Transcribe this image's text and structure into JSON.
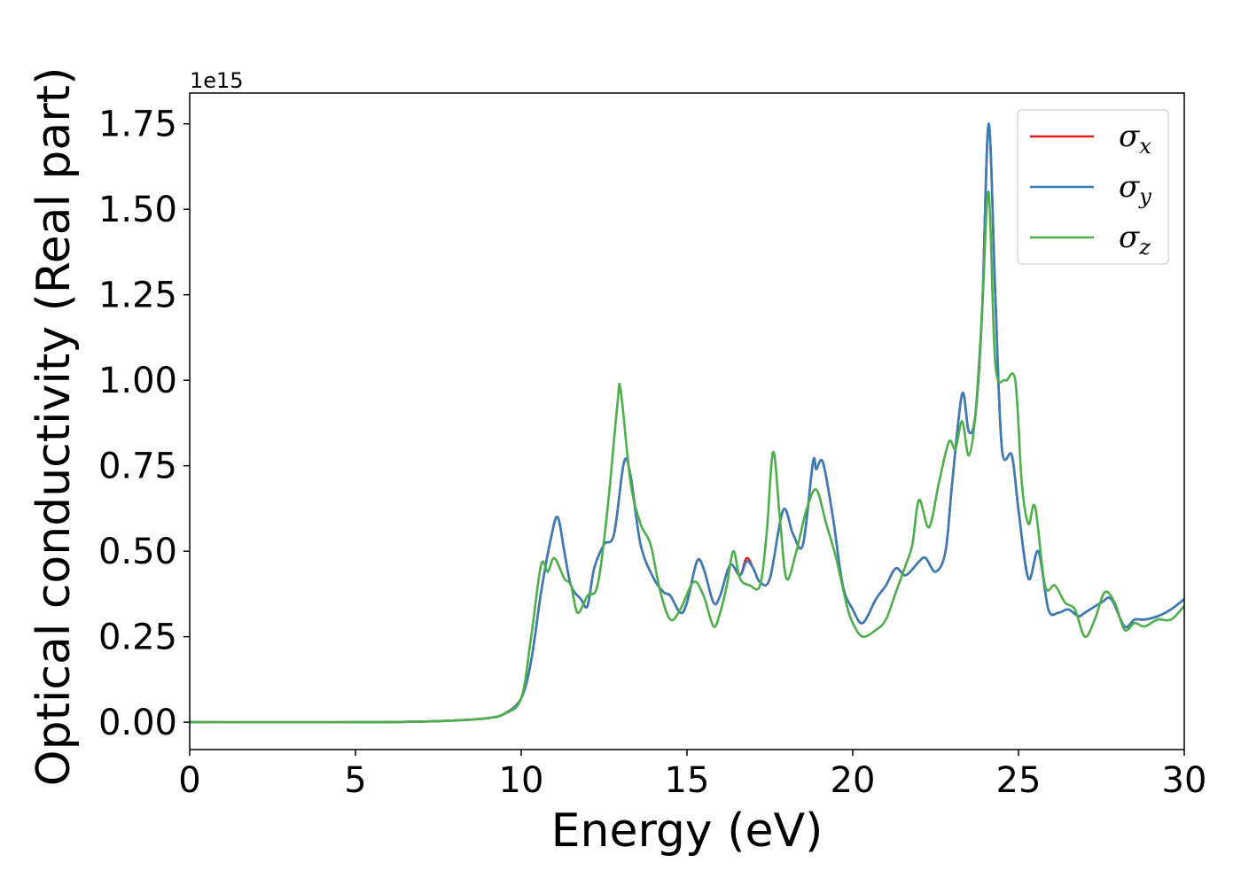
{
  "chart_data": {
    "type": "line",
    "xlabel": "Energy (eV)",
    "ylabel": "Optical conductivity (Real part)",
    "y_offset_label": "1e15",
    "xlim": [
      0,
      30
    ],
    "ylim": [
      -0.08,
      1.84
    ],
    "y_scale": 1000000000000000.0,
    "x_ticks": [
      0,
      5,
      10,
      15,
      20,
      25,
      30
    ],
    "x_tick_labels": [
      "0",
      "5",
      "10",
      "15",
      "20",
      "25",
      "30"
    ],
    "y_ticks": [
      0.0,
      0.25,
      0.5,
      0.75,
      1.0,
      1.25,
      1.5,
      1.75
    ],
    "y_tick_labels": [
      "0.00",
      "0.25",
      "0.50",
      "0.75",
      "1.00",
      "1.25",
      "1.50",
      "1.75"
    ],
    "grid": false,
    "legend_position": "top-right",
    "series": [
      {
        "name": "σx",
        "color": "#e41a1c",
        "points": [
          [
            0,
            0
          ],
          [
            5,
            0.0
          ],
          [
            7,
            0.002
          ],
          [
            8,
            0.005
          ],
          [
            9,
            0.012
          ],
          [
            9.5,
            0.025
          ],
          [
            10,
            0.07
          ],
          [
            10.3,
            0.18
          ],
          [
            10.6,
            0.38
          ],
          [
            10.9,
            0.54
          ],
          [
            11.1,
            0.6
          ],
          [
            11.3,
            0.5
          ],
          [
            11.5,
            0.4
          ],
          [
            11.8,
            0.36
          ],
          [
            12.0,
            0.34
          ],
          [
            12.2,
            0.45
          ],
          [
            12.5,
            0.52
          ],
          [
            12.8,
            0.55
          ],
          [
            13.1,
            0.76
          ],
          [
            13.3,
            0.72
          ],
          [
            13.6,
            0.52
          ],
          [
            14.0,
            0.42
          ],
          [
            14.3,
            0.38
          ],
          [
            14.5,
            0.37
          ],
          [
            14.8,
            0.32
          ],
          [
            15.0,
            0.35
          ],
          [
            15.3,
            0.47
          ],
          [
            15.5,
            0.45
          ],
          [
            15.8,
            0.35
          ],
          [
            16.0,
            0.37
          ],
          [
            16.3,
            0.46
          ],
          [
            16.6,
            0.43
          ],
          [
            16.8,
            0.48
          ],
          [
            17.0,
            0.45
          ],
          [
            17.2,
            0.41
          ],
          [
            17.5,
            0.42
          ],
          [
            17.9,
            0.62
          ],
          [
            18.2,
            0.55
          ],
          [
            18.5,
            0.52
          ],
          [
            18.8,
            0.76
          ],
          [
            18.9,
            0.74
          ],
          [
            19.1,
            0.76
          ],
          [
            19.4,
            0.6
          ],
          [
            19.7,
            0.4
          ],
          [
            20.0,
            0.33
          ],
          [
            20.3,
            0.29
          ],
          [
            20.7,
            0.36
          ],
          [
            21.0,
            0.4
          ],
          [
            21.3,
            0.45
          ],
          [
            21.6,
            0.43
          ],
          [
            22.0,
            0.47
          ],
          [
            22.2,
            0.48
          ],
          [
            22.5,
            0.44
          ],
          [
            22.8,
            0.5
          ],
          [
            23.0,
            0.7
          ],
          [
            23.3,
            0.96
          ],
          [
            23.5,
            0.85
          ],
          [
            23.7,
            0.9
          ],
          [
            23.9,
            1.2
          ],
          [
            24.1,
            1.75
          ],
          [
            24.3,
            1.25
          ],
          [
            24.5,
            0.8
          ],
          [
            24.8,
            0.78
          ],
          [
            25.0,
            0.62
          ],
          [
            25.3,
            0.42
          ],
          [
            25.6,
            0.5
          ],
          [
            25.9,
            0.33
          ],
          [
            26.2,
            0.32
          ],
          [
            26.5,
            0.33
          ],
          [
            26.8,
            0.31
          ],
          [
            27.0,
            0.32
          ],
          [
            27.5,
            0.35
          ],
          [
            27.8,
            0.36
          ],
          [
            28.2,
            0.28
          ],
          [
            28.5,
            0.3
          ],
          [
            28.8,
            0.3
          ],
          [
            29.2,
            0.31
          ],
          [
            29.6,
            0.33
          ],
          [
            30,
            0.36
          ]
        ]
      },
      {
        "name": "σy",
        "color": "#377eb8",
        "points": [
          [
            0,
            0
          ],
          [
            5,
            0.0
          ],
          [
            7,
            0.002
          ],
          [
            8,
            0.005
          ],
          [
            9,
            0.012
          ],
          [
            9.5,
            0.025
          ],
          [
            10,
            0.07
          ],
          [
            10.3,
            0.18
          ],
          [
            10.6,
            0.38
          ],
          [
            10.9,
            0.54
          ],
          [
            11.1,
            0.6
          ],
          [
            11.3,
            0.5
          ],
          [
            11.5,
            0.4
          ],
          [
            11.8,
            0.36
          ],
          [
            12.0,
            0.34
          ],
          [
            12.2,
            0.45
          ],
          [
            12.5,
            0.52
          ],
          [
            12.8,
            0.55
          ],
          [
            13.1,
            0.76
          ],
          [
            13.3,
            0.72
          ],
          [
            13.6,
            0.52
          ],
          [
            14.0,
            0.42
          ],
          [
            14.3,
            0.38
          ],
          [
            14.5,
            0.37
          ],
          [
            14.8,
            0.32
          ],
          [
            15.0,
            0.35
          ],
          [
            15.3,
            0.47
          ],
          [
            15.5,
            0.45
          ],
          [
            15.8,
            0.35
          ],
          [
            16.0,
            0.37
          ],
          [
            16.3,
            0.46
          ],
          [
            16.6,
            0.43
          ],
          [
            16.8,
            0.47
          ],
          [
            17.0,
            0.45
          ],
          [
            17.2,
            0.41
          ],
          [
            17.5,
            0.42
          ],
          [
            17.9,
            0.62
          ],
          [
            18.2,
            0.55
          ],
          [
            18.5,
            0.52
          ],
          [
            18.8,
            0.76
          ],
          [
            18.9,
            0.74
          ],
          [
            19.1,
            0.76
          ],
          [
            19.4,
            0.6
          ],
          [
            19.7,
            0.4
          ],
          [
            20.0,
            0.33
          ],
          [
            20.3,
            0.29
          ],
          [
            20.7,
            0.36
          ],
          [
            21.0,
            0.4
          ],
          [
            21.3,
            0.45
          ],
          [
            21.6,
            0.43
          ],
          [
            22.0,
            0.47
          ],
          [
            22.2,
            0.48
          ],
          [
            22.5,
            0.44
          ],
          [
            22.8,
            0.5
          ],
          [
            23.0,
            0.7
          ],
          [
            23.3,
            0.96
          ],
          [
            23.5,
            0.85
          ],
          [
            23.7,
            0.9
          ],
          [
            23.9,
            1.2
          ],
          [
            24.1,
            1.75
          ],
          [
            24.3,
            1.25
          ],
          [
            24.5,
            0.8
          ],
          [
            24.8,
            0.78
          ],
          [
            25.0,
            0.62
          ],
          [
            25.3,
            0.42
          ],
          [
            25.6,
            0.5
          ],
          [
            25.9,
            0.33
          ],
          [
            26.2,
            0.32
          ],
          [
            26.5,
            0.33
          ],
          [
            26.8,
            0.31
          ],
          [
            27.0,
            0.32
          ],
          [
            27.5,
            0.35
          ],
          [
            27.8,
            0.36
          ],
          [
            28.2,
            0.28
          ],
          [
            28.5,
            0.3
          ],
          [
            28.8,
            0.3
          ],
          [
            29.2,
            0.31
          ],
          [
            29.6,
            0.33
          ],
          [
            30,
            0.36
          ]
        ]
      },
      {
        "name": "σz",
        "color": "#4daf4a",
        "points": [
          [
            0,
            0
          ],
          [
            5,
            0.0
          ],
          [
            7,
            0.002
          ],
          [
            8,
            0.005
          ],
          [
            9,
            0.012
          ],
          [
            9.5,
            0.025
          ],
          [
            10,
            0.07
          ],
          [
            10.3,
            0.25
          ],
          [
            10.6,
            0.46
          ],
          [
            10.8,
            0.44
          ],
          [
            11.0,
            0.48
          ],
          [
            11.3,
            0.42
          ],
          [
            11.5,
            0.4
          ],
          [
            11.7,
            0.32
          ],
          [
            12.0,
            0.37
          ],
          [
            12.3,
            0.4
          ],
          [
            12.6,
            0.62
          ],
          [
            12.9,
            0.93
          ],
          [
            13.0,
            0.97
          ],
          [
            13.3,
            0.7
          ],
          [
            13.6,
            0.58
          ],
          [
            13.9,
            0.52
          ],
          [
            14.2,
            0.38
          ],
          [
            14.5,
            0.3
          ],
          [
            14.8,
            0.33
          ],
          [
            15.2,
            0.41
          ],
          [
            15.5,
            0.37
          ],
          [
            15.8,
            0.28
          ],
          [
            16.0,
            0.32
          ],
          [
            16.2,
            0.4
          ],
          [
            16.4,
            0.5
          ],
          [
            16.6,
            0.42
          ],
          [
            16.9,
            0.4
          ],
          [
            17.2,
            0.4
          ],
          [
            17.4,
            0.55
          ],
          [
            17.6,
            0.79
          ],
          [
            17.8,
            0.6
          ],
          [
            18.0,
            0.42
          ],
          [
            18.3,
            0.5
          ],
          [
            18.6,
            0.62
          ],
          [
            18.9,
            0.68
          ],
          [
            19.2,
            0.58
          ],
          [
            19.5,
            0.48
          ],
          [
            19.8,
            0.35
          ],
          [
            20.0,
            0.29
          ],
          [
            20.3,
            0.25
          ],
          [
            20.7,
            0.27
          ],
          [
            21.0,
            0.3
          ],
          [
            21.3,
            0.38
          ],
          [
            21.6,
            0.46
          ],
          [
            21.8,
            0.52
          ],
          [
            22.0,
            0.65
          ],
          [
            22.3,
            0.57
          ],
          [
            22.6,
            0.7
          ],
          [
            22.9,
            0.82
          ],
          [
            23.1,
            0.8
          ],
          [
            23.3,
            0.88
          ],
          [
            23.5,
            0.78
          ],
          [
            23.7,
            0.9
          ],
          [
            23.9,
            1.2
          ],
          [
            24.1,
            1.55
          ],
          [
            24.3,
            1.05
          ],
          [
            24.6,
            1.0
          ],
          [
            24.9,
            1.0
          ],
          [
            25.1,
            0.7
          ],
          [
            25.3,
            0.58
          ],
          [
            25.5,
            0.63
          ],
          [
            25.8,
            0.4
          ],
          [
            26.1,
            0.4
          ],
          [
            26.4,
            0.35
          ],
          [
            26.7,
            0.33
          ],
          [
            27.0,
            0.25
          ],
          [
            27.3,
            0.3
          ],
          [
            27.6,
            0.38
          ],
          [
            27.9,
            0.35
          ],
          [
            28.2,
            0.27
          ],
          [
            28.5,
            0.29
          ],
          [
            28.8,
            0.28
          ],
          [
            29.2,
            0.3
          ],
          [
            29.6,
            0.3
          ],
          [
            30,
            0.34
          ]
        ]
      }
    ]
  }
}
